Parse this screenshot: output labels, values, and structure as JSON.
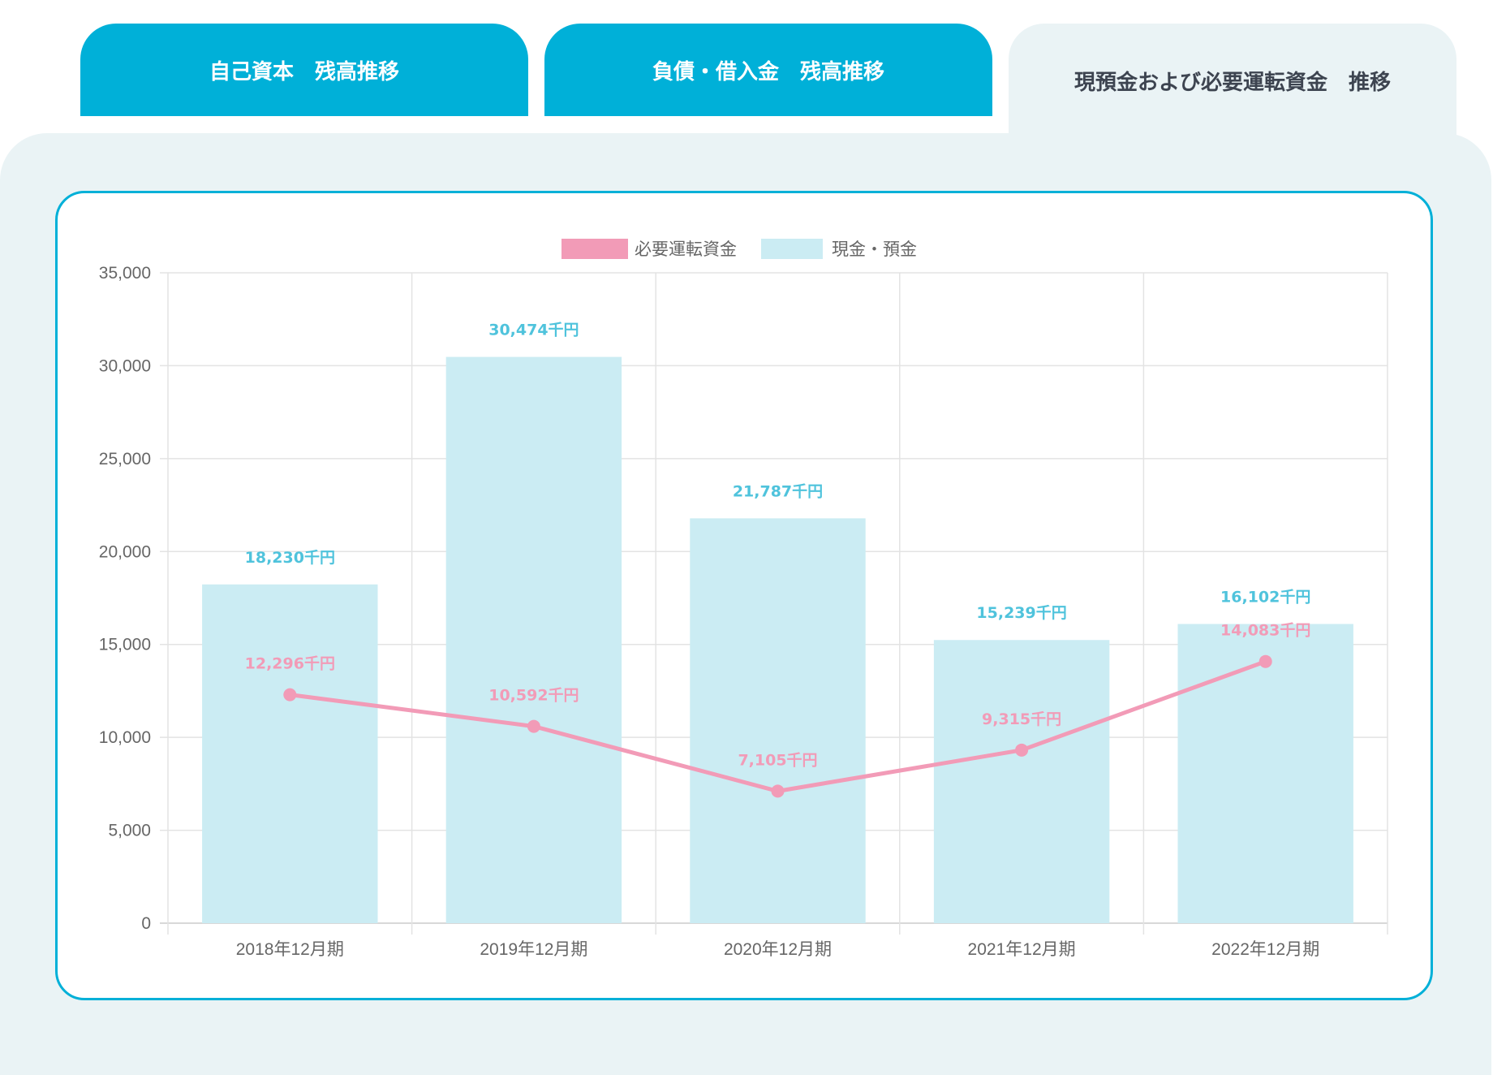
{
  "tabs": [
    {
      "label": "自己資本　残高推移"
    },
    {
      "label": "負債・借入金　残高推移"
    },
    {
      "label": "現預金および必要運転資金　推移"
    }
  ],
  "colors": {
    "accent": "#00b0d8",
    "bar": "#cbecf3",
    "line": "#f29bb7",
    "bar_label": "#4fc3dc",
    "panel": "#eaf3f5"
  },
  "chart_data": {
    "type": "bar",
    "categories": [
      "2018年12月期",
      "2019年12月期",
      "2020年12月期",
      "2021年12月期",
      "2022年12月期"
    ],
    "series": [
      {
        "name": "必要運転資金",
        "type": "line",
        "values": [
          12296,
          10592,
          7105,
          9315,
          14083
        ],
        "labels": [
          "12,296千円",
          "10,592千円",
          "7,105千円",
          "9,315千円",
          "14,083千円"
        ]
      },
      {
        "name": "現金・預金",
        "type": "bar",
        "values": [
          18230,
          30474,
          21787,
          15239,
          16102
        ],
        "labels": [
          "18,230千円",
          "30,474千円",
          "21,787千円",
          "15,239千円",
          "16,102千円"
        ]
      }
    ],
    "yticks": [
      "0",
      "5,000",
      "10,000",
      "15,000",
      "20,000",
      "25,000",
      "30,000",
      "35,000"
    ],
    "ylim": [
      0,
      35000
    ],
    "grid": true,
    "legend": "top-center"
  }
}
